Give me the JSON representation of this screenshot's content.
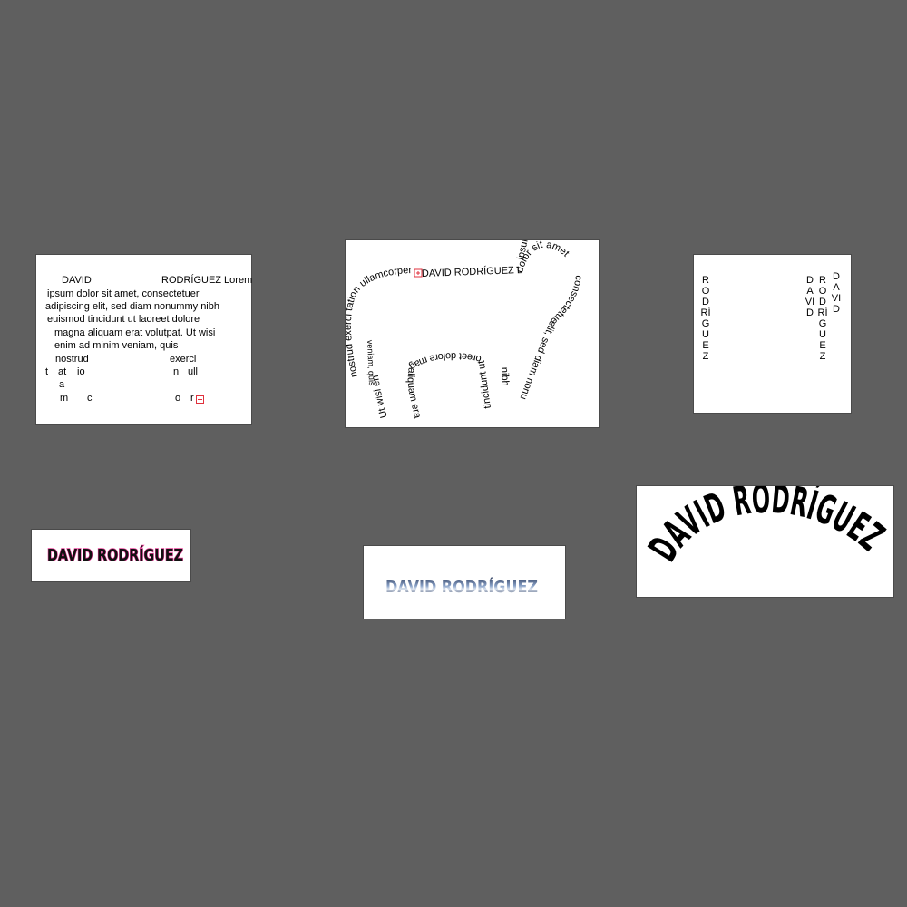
{
  "artboards": {
    "area_text": {
      "first_line_left": "DAVID",
      "first_line_right": "RODRÍGUEZ Lorem",
      "lines": [
        "ipsum dolor sit amet, consectetuer",
        "adipiscing elit, sed diam nonummy nibh",
        "euismod tincidunt ut laoreet dolore",
        "magna aliquam erat volutpat. Ut wisi",
        "enim ad minim veniam, quis"
      ],
      "fragment_nostrud": "nostrud",
      "fragment_exerci": "exerci",
      "fragment_t": "t",
      "fragment_at": "at",
      "fragment_io": "io",
      "fragment_n": "n",
      "fragment_ull": "ull",
      "fragment_a": "a",
      "fragment_m": "m",
      "fragment_c": "c",
      "fragment_o": "o",
      "fragment_r": "r"
    },
    "path_text": {
      "top_text": "DAVID RODRÍGUEZ Lorem",
      "head_text_1": "ipsum",
      "head_text_2": "dolor sit amet",
      "face_text": "consectetuer adipiscing",
      "chin_text": "elit, sed diam nonummy",
      "front_leg_text": "nibh",
      "front_leg_text_2": "tincidunt ut la",
      "belly_text": "oreet dolore magna",
      "back_leg_text": "aliquam erat volutpat.",
      "back_leg_text_2": "Ut wisi enim ad minim",
      "tail_text": "nostrud exerci tation ullamcorper",
      "inner_text": "veniam, quis"
    },
    "vertical_text": {
      "col1": "RODRÍGUEZ",
      "col2": "DAVID",
      "col3": "RODRÍGUEZ",
      "col4": "DAVID"
    },
    "outlined_name": {
      "text": "DAVID RODRÍGUEZ"
    },
    "image_filled_name": {
      "text": "DAVID RODRÍGUEZ"
    },
    "arched_name": {
      "text": "DAVID RODRÍGUEZ"
    }
  },
  "colors": {
    "canvas": "#5f5f5f",
    "artboard": "#ffffff",
    "overflow_marker": "#e0303c",
    "outline_pink": "#e8409a"
  }
}
